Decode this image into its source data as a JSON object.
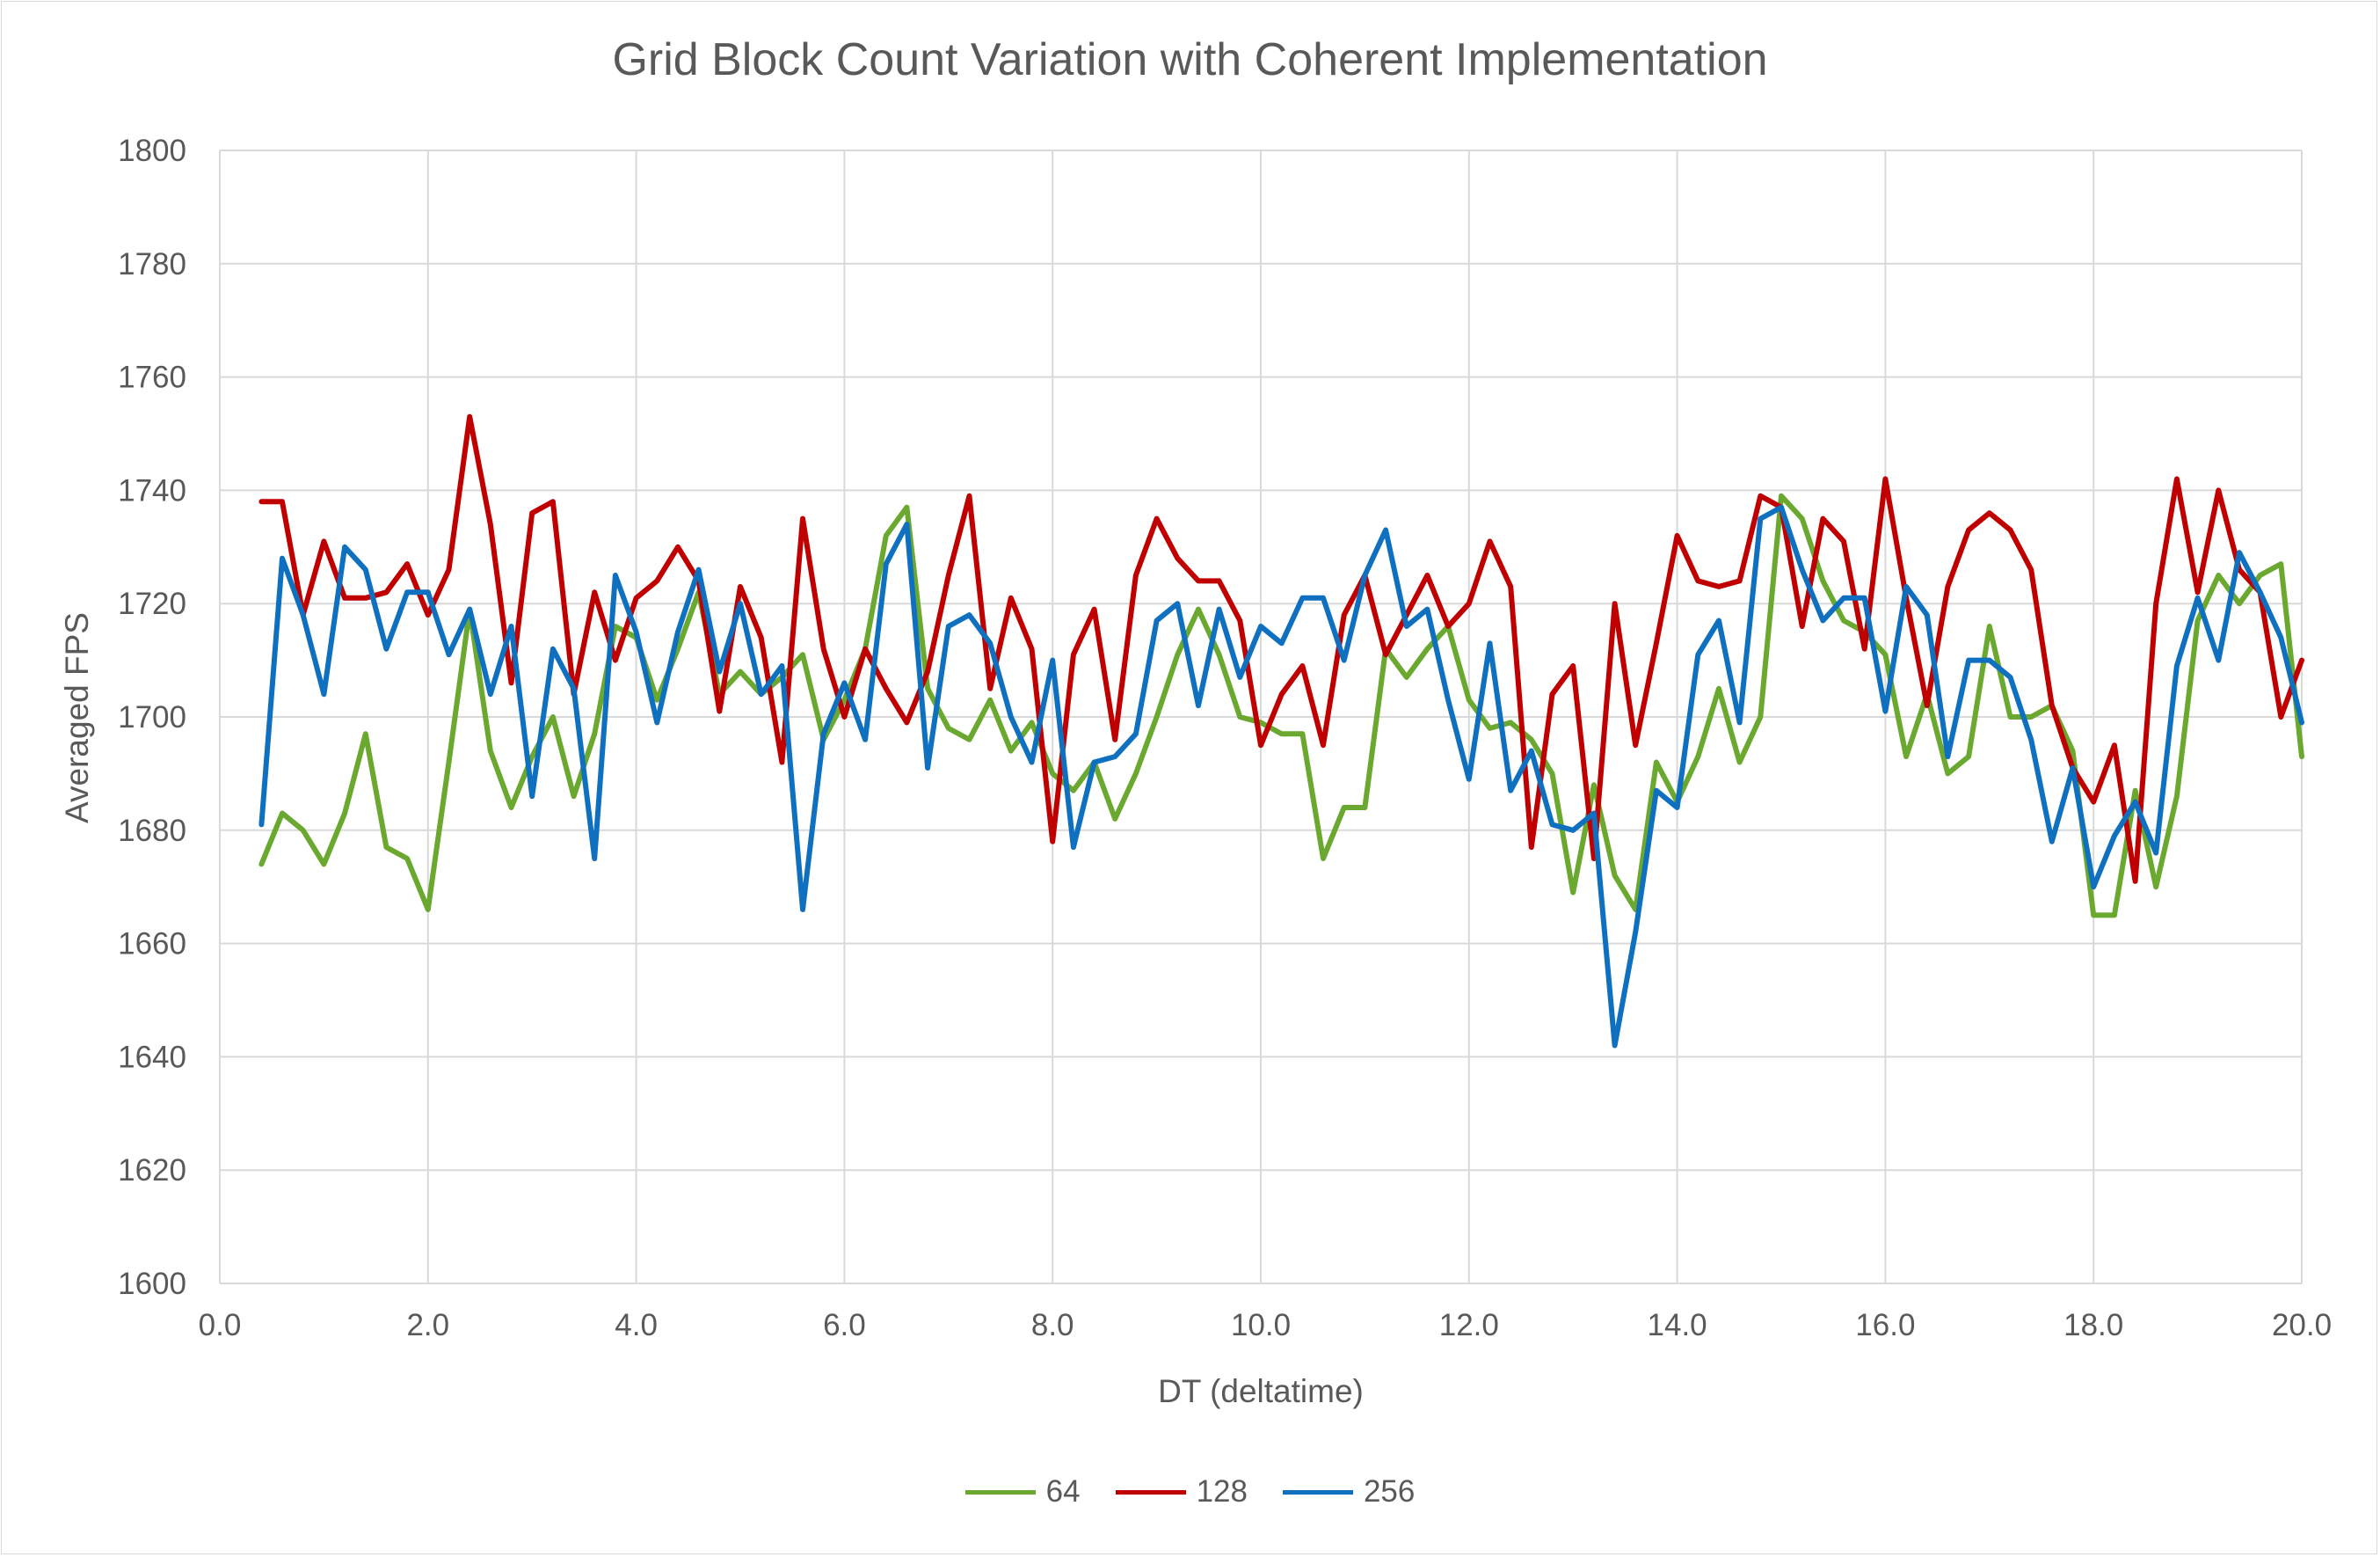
{
  "chart_data": {
    "type": "line",
    "title": "Grid Block Count Variation with Coherent Implementation",
    "xlabel": "DT (deltatime)",
    "ylabel": "Averaged FPS",
    "xlim": [
      0,
      20
    ],
    "ylim": [
      1600,
      1800
    ],
    "x_ticks": [
      "0.0",
      "2.0",
      "4.0",
      "6.0",
      "8.0",
      "10.0",
      "12.0",
      "14.0",
      "16.0",
      "18.0",
      "20.0"
    ],
    "y_ticks": [
      "1600",
      "1620",
      "1640",
      "1660",
      "1680",
      "1700",
      "1720",
      "1740",
      "1760",
      "1780",
      "1800"
    ],
    "grid": true,
    "legend_position": "bottom",
    "x": [
      0.4,
      0.6,
      0.8,
      1.0,
      1.2,
      1.4,
      1.6,
      1.8,
      2.0,
      2.2,
      2.4,
      2.6,
      2.8,
      3.0,
      3.2,
      3.4,
      3.6,
      3.8,
      4.0,
      4.2,
      4.4,
      4.6,
      4.8,
      5.0,
      5.2,
      5.4,
      5.6,
      5.8,
      6.0,
      6.2,
      6.4,
      6.6,
      6.8,
      7.0,
      7.2,
      7.4,
      7.6,
      7.8,
      8.0,
      8.2,
      8.4,
      8.6,
      8.8,
      9.0,
      9.2,
      9.4,
      9.6,
      9.8,
      10.0,
      10.2,
      10.4,
      10.6,
      10.8,
      11.0,
      11.2,
      11.4,
      11.6,
      11.8,
      12.0,
      12.2,
      12.4,
      12.6,
      12.8,
      13.0,
      13.2,
      13.4,
      13.6,
      13.8,
      14.0,
      14.2,
      14.4,
      14.6,
      14.8,
      15.0,
      15.2,
      15.4,
      15.6,
      15.8,
      16.0,
      16.2,
      16.4,
      16.6,
      16.8,
      17.0,
      17.2,
      17.4,
      17.6,
      17.8,
      18.0,
      18.2,
      18.4,
      18.6,
      18.8,
      19.0,
      19.2,
      19.4,
      19.6,
      19.8,
      20.0
    ],
    "series": [
      {
        "name": "64",
        "color": "#6aa82f",
        "values": [
          1674,
          1683,
          1680,
          1674,
          1683,
          1697,
          1677,
          1675,
          1666,
          1692,
          1719,
          1694,
          1684,
          1693,
          1700,
          1686,
          1697,
          1716,
          1714,
          1703,
          1712,
          1722,
          1704,
          1708,
          1704,
          1707,
          1711,
          1696,
          1703,
          1712,
          1732,
          1737,
          1705,
          1698,
          1696,
          1703,
          1694,
          1699,
          1690,
          1687,
          1692,
          1682,
          1690,
          1700,
          1711,
          1719,
          1711,
          1700,
          1699,
          1697,
          1697,
          1675,
          1684,
          1684,
          1712,
          1707,
          1712,
          1716,
          1703,
          1698,
          1699,
          1696,
          1690,
          1669,
          1688,
          1672,
          1666,
          1692,
          1685,
          1693,
          1705,
          1692,
          1700,
          1739,
          1735,
          1724,
          1717,
          1715,
          1711,
          1693,
          1704,
          1690,
          1693,
          1716,
          1700,
          1700,
          1702,
          1694,
          1665,
          1665,
          1687,
          1670,
          1686,
          1717,
          1725,
          1720,
          1725,
          1727,
          1693
        ]
      },
      {
        "name": "128",
        "color": "#c00000",
        "values": [
          1738,
          1738,
          1718,
          1731,
          1721,
          1721,
          1722,
          1727,
          1718,
          1726,
          1753,
          1734,
          1706,
          1736,
          1738,
          1704,
          1722,
          1710,
          1721,
          1724,
          1730,
          1724,
          1701,
          1723,
          1714,
          1692,
          1735,
          1712,
          1700,
          1712,
          1705,
          1699,
          1708,
          1725,
          1739,
          1705,
          1721,
          1712,
          1678,
          1711,
          1719,
          1696,
          1725,
          1735,
          1728,
          1724,
          1724,
          1717,
          1695,
          1704,
          1709,
          1695,
          1718,
          1725,
          1711,
          1718,
          1725,
          1716,
          1720,
          1731,
          1723,
          1677,
          1704,
          1709,
          1675,
          1720,
          1695,
          1713,
          1732,
          1724,
          1723,
          1724,
          1739,
          1737,
          1716,
          1735,
          1731,
          1712,
          1742,
          1721,
          1702,
          1723,
          1733,
          1736,
          1733,
          1726,
          1702,
          1691,
          1685,
          1695,
          1671,
          1720,
          1742,
          1722,
          1740,
          1726,
          1722,
          1700,
          1710
        ]
      },
      {
        "name": "256",
        "color": "#1070c0",
        "values": [
          1681,
          1728,
          1718,
          1704,
          1730,
          1726,
          1712,
          1722,
          1722,
          1711,
          1719,
          1704,
          1716,
          1686,
          1712,
          1705,
          1675,
          1725,
          1715,
          1699,
          1715,
          1726,
          1708,
          1720,
          1704,
          1709,
          1666,
          1697,
          1706,
          1696,
          1727,
          1734,
          1691,
          1716,
          1718,
          1713,
          1700,
          1692,
          1710,
          1677,
          1692,
          1693,
          1697,
          1717,
          1720,
          1702,
          1719,
          1707,
          1716,
          1713,
          1721,
          1721,
          1710,
          1725,
          1733,
          1716,
          1719,
          1703,
          1689,
          1713,
          1687,
          1694,
          1681,
          1680,
          1683,
          1642,
          1662,
          1687,
          1684,
          1711,
          1717,
          1699,
          1735,
          1737,
          1726,
          1717,
          1721,
          1721,
          1701,
          1723,
          1718,
          1693,
          1710,
          1710,
          1707,
          1696,
          1678,
          1691,
          1670,
          1679,
          1685,
          1676,
          1709,
          1721,
          1710,
          1729,
          1722,
          1714,
          1699
        ]
      }
    ]
  }
}
